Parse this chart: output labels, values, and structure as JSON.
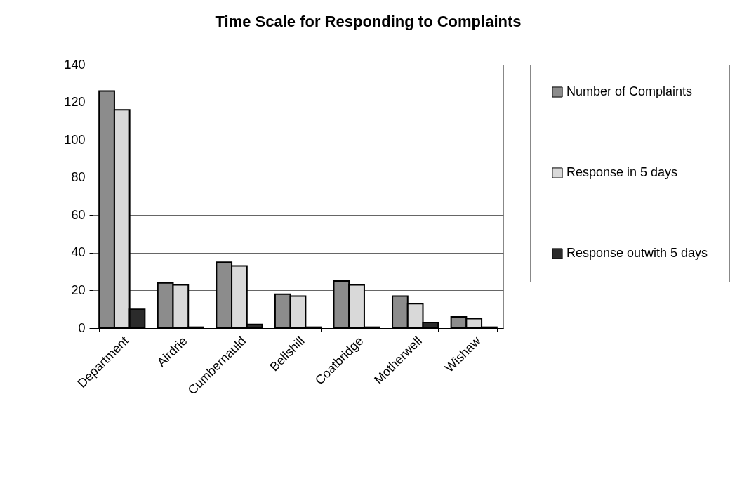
{
  "chart_data": {
    "type": "bar",
    "title": "Time Scale for Responding to Complaints",
    "categories": [
      "Department",
      "Airdrie",
      "Cumbernauld",
      "Bellshill",
      "Coatbridge",
      "Motherwell",
      "Wishaw"
    ],
    "series": [
      {
        "name": "Number of Complaints",
        "color": "#8c8c8c",
        "values": [
          126,
          24,
          35,
          18,
          25,
          17,
          6
        ]
      },
      {
        "name": "Response in 5 days",
        "color": "#d9d9d9",
        "values": [
          116,
          23,
          33,
          17,
          23,
          13,
          5
        ]
      },
      {
        "name": "Response outwith 5 days",
        "color": "#2b2b2b",
        "values": [
          10,
          0.5,
          2,
          0.5,
          0.5,
          3,
          0.5
        ]
      }
    ],
    "ylim": [
      0,
      140
    ],
    "yticks": [
      0,
      20,
      40,
      60,
      80,
      100,
      120,
      140
    ],
    "grid": "y",
    "legend": "right"
  }
}
